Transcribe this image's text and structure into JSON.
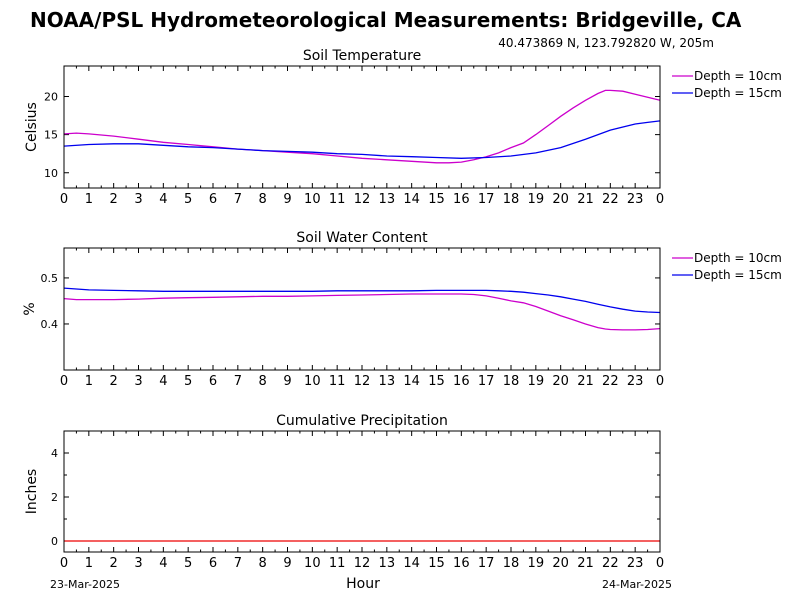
{
  "header": {
    "title": "NOAA/PSL Hydrometeorological Measurements: Bridgeville, CA",
    "location": "40.473869 N, 123.792820 W, 205m"
  },
  "footer": {
    "start_date": "23-Mar-2025",
    "end_date": "24-Mar-2025",
    "xlabel": "Hour"
  },
  "colors": {
    "depth_10cm": "#cc00cc",
    "depth_15cm": "#0000ee",
    "precip": "#ee0000"
  },
  "chart_data": [
    {
      "type": "line",
      "title": "Soil Temperature",
      "ylabel": "Celsius",
      "xlabel": "",
      "xlim": [
        0,
        24
      ],
      "ylim": [
        8,
        24
      ],
      "x_ticks": [
        0,
        1,
        2,
        3,
        4,
        5,
        6,
        7,
        8,
        9,
        10,
        11,
        12,
        13,
        14,
        15,
        16,
        17,
        18,
        19,
        20,
        21,
        22,
        23,
        24
      ],
      "x_tick_labels": [
        "0",
        "1",
        "2",
        "3",
        "4",
        "5",
        "6",
        "7",
        "8",
        "9",
        "10",
        "11",
        "12",
        "13",
        "14",
        "15",
        "16",
        "17",
        "18",
        "19",
        "20",
        "21",
        "22",
        "23",
        "0"
      ],
      "y_ticks": [
        10,
        15,
        20
      ],
      "y_tick_labels": [
        "10",
        "15",
        "20"
      ],
      "legend": "right-top",
      "series": [
        {
          "name": "Depth = 10cm",
          "x": [
            0,
            0.5,
            1,
            2,
            3,
            4,
            5,
            6,
            7,
            8,
            9,
            10,
            11,
            12,
            13,
            14,
            15,
            15.5,
            16,
            16.5,
            17,
            17.5,
            18,
            18.5,
            19,
            19.5,
            20,
            20.5,
            21,
            21.5,
            21.8,
            22,
            22.5,
            23,
            23.5,
            24
          ],
          "y": [
            15.1,
            15.2,
            15.1,
            14.8,
            14.4,
            14.0,
            13.7,
            13.4,
            13.1,
            12.9,
            12.7,
            12.5,
            12.2,
            11.9,
            11.7,
            11.5,
            11.3,
            11.3,
            11.4,
            11.7,
            12.1,
            12.6,
            13.3,
            13.9,
            15.0,
            16.2,
            17.4,
            18.5,
            19.5,
            20.4,
            20.8,
            20.8,
            20.7,
            20.3,
            19.9,
            19.5
          ]
        },
        {
          "name": "Depth = 15cm",
          "x": [
            0,
            1,
            2,
            3,
            4,
            5,
            6,
            7,
            8,
            9,
            10,
            11,
            12,
            13,
            14,
            15,
            16,
            17,
            18,
            19,
            20,
            21,
            22,
            23,
            23.5,
            24
          ],
          "y": [
            13.5,
            13.7,
            13.8,
            13.8,
            13.6,
            13.4,
            13.3,
            13.1,
            12.9,
            12.8,
            12.7,
            12.5,
            12.4,
            12.2,
            12.1,
            12.0,
            11.9,
            12.0,
            12.2,
            12.6,
            13.3,
            14.4,
            15.6,
            16.4,
            16.6,
            16.8
          ]
        }
      ]
    },
    {
      "type": "line",
      "title": "Soil Water Content",
      "ylabel": "%",
      "xlabel": "",
      "xlim": [
        0,
        24
      ],
      "ylim": [
        0.3,
        0.565
      ],
      "x_ticks": [
        0,
        1,
        2,
        3,
        4,
        5,
        6,
        7,
        8,
        9,
        10,
        11,
        12,
        13,
        14,
        15,
        16,
        17,
        18,
        19,
        20,
        21,
        22,
        23,
        24
      ],
      "x_tick_labels": [
        "0",
        "1",
        "2",
        "3",
        "4",
        "5",
        "6",
        "7",
        "8",
        "9",
        "10",
        "11",
        "12",
        "13",
        "14",
        "15",
        "16",
        "17",
        "18",
        "19",
        "20",
        "21",
        "22",
        "23",
        "0"
      ],
      "y_ticks": [
        0.4,
        0.5
      ],
      "y_tick_labels": [
        "0.4",
        "0.5"
      ],
      "legend": "right-top",
      "series": [
        {
          "name": "Depth = 10cm",
          "x": [
            0,
            0.5,
            1,
            2,
            3,
            4,
            5,
            6,
            7,
            8,
            9,
            10,
            11,
            12,
            13,
            14,
            15,
            16,
            16.5,
            17,
            17.5,
            18,
            18.5,
            19,
            19.5,
            20,
            20.5,
            21,
            21.5,
            21.8,
            22,
            22.5,
            23,
            23.5,
            24
          ],
          "y": [
            0.455,
            0.453,
            0.453,
            0.453,
            0.454,
            0.456,
            0.457,
            0.458,
            0.459,
            0.46,
            0.46,
            0.461,
            0.462,
            0.463,
            0.464,
            0.465,
            0.465,
            0.465,
            0.464,
            0.461,
            0.456,
            0.45,
            0.446,
            0.438,
            0.428,
            0.418,
            0.409,
            0.4,
            0.392,
            0.389,
            0.388,
            0.387,
            0.387,
            0.388,
            0.39
          ]
        },
        {
          "name": "Depth = 15cm",
          "x": [
            0,
            0.5,
            1,
            2,
            3,
            4,
            5,
            6,
            7,
            8,
            9,
            10,
            11,
            12,
            13,
            14,
            15,
            16,
            17,
            17.5,
            18,
            18.5,
            19,
            19.5,
            20,
            20.5,
            21,
            21.5,
            22,
            22.5,
            23,
            23.5,
            24
          ],
          "y": [
            0.478,
            0.476,
            0.474,
            0.473,
            0.472,
            0.471,
            0.471,
            0.471,
            0.471,
            0.471,
            0.471,
            0.471,
            0.472,
            0.472,
            0.472,
            0.472,
            0.473,
            0.473,
            0.473,
            0.472,
            0.471,
            0.469,
            0.466,
            0.463,
            0.459,
            0.454,
            0.449,
            0.443,
            0.437,
            0.432,
            0.428,
            0.426,
            0.425
          ]
        }
      ]
    },
    {
      "type": "line",
      "title": "Cumulative Precipitation",
      "ylabel": "Inches",
      "xlabel": "Hour",
      "xlim": [
        0,
        24
      ],
      "ylim": [
        -0.5,
        5
      ],
      "x_ticks": [
        0,
        1,
        2,
        3,
        4,
        5,
        6,
        7,
        8,
        9,
        10,
        11,
        12,
        13,
        14,
        15,
        16,
        17,
        18,
        19,
        20,
        21,
        22,
        23,
        24
      ],
      "x_tick_labels": [
        "0",
        "1",
        "2",
        "3",
        "4",
        "5",
        "6",
        "7",
        "8",
        "9",
        "10",
        "11",
        "12",
        "13",
        "14",
        "15",
        "16",
        "17",
        "18",
        "19",
        "20",
        "21",
        "22",
        "23",
        "0"
      ],
      "y_ticks": [
        0,
        2,
        4
      ],
      "y_tick_labels": [
        "0",
        "2",
        "4"
      ],
      "y_minor_ticks": [
        1,
        3
      ],
      "legend": "none",
      "series": [
        {
          "x": [
            0,
            24
          ],
          "y": [
            0,
            0
          ]
        }
      ]
    }
  ]
}
